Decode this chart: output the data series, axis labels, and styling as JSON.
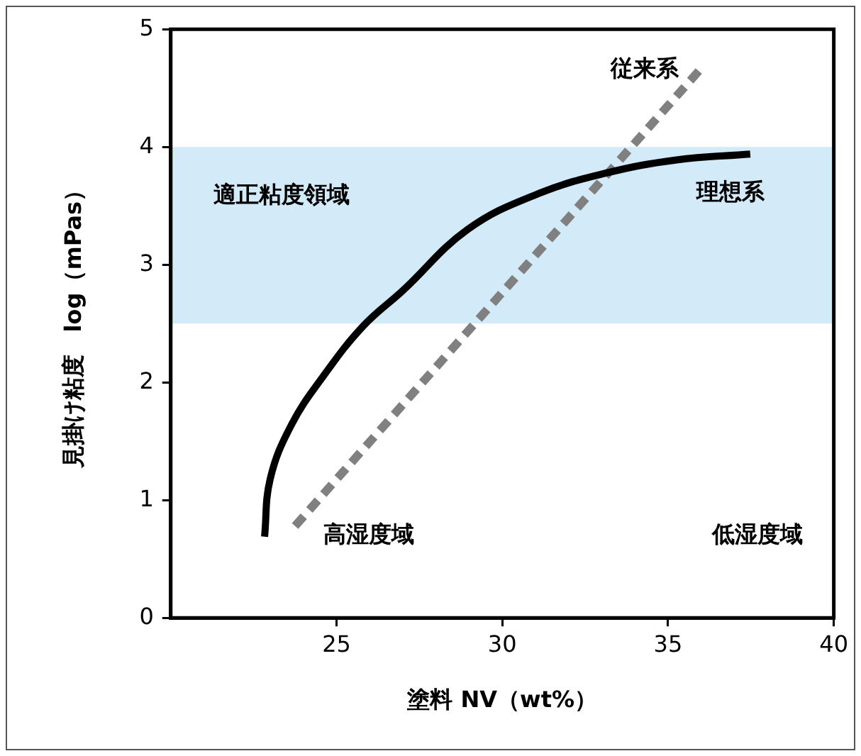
{
  "chart_data": {
    "type": "line",
    "xlabel": "塗料 NV（wt%）",
    "ylabel": "見掛け粘度　log（mPas）",
    "xlim": [
      20,
      40
    ],
    "xticks": [
      25,
      30,
      35,
      40
    ],
    "ylim": [
      0,
      5
    ],
    "yticks": [
      0,
      1,
      2,
      3,
      4,
      5
    ],
    "grid": false,
    "legend": false,
    "marker": "none",
    "series": [
      {
        "name": "理想系",
        "color": "#000000",
        "line_style": "solid",
        "x": [
          22.83,
          23.0,
          23.64,
          24.62,
          25.81,
          27.0,
          28.96,
          31.06,
          33.16,
          35.26,
          37.48
        ],
        "values": [
          0.69,
          1.18,
          1.64,
          2.06,
          2.48,
          2.78,
          3.3,
          3.6,
          3.78,
          3.89,
          3.94
        ]
      },
      {
        "name": "従来系",
        "color": "#808080",
        "line_style": "dashed",
        "x": [
          23.75,
          36.1
        ],
        "values": [
          0.78,
          4.7
        ]
      }
    ],
    "bands": [
      {
        "axis": "y",
        "from": 2.5,
        "to": 4,
        "label": "適正粘度領域",
        "color": "#d3eaf8"
      }
    ],
    "annotations": [
      "高湿度域",
      "低湿度域"
    ]
  }
}
